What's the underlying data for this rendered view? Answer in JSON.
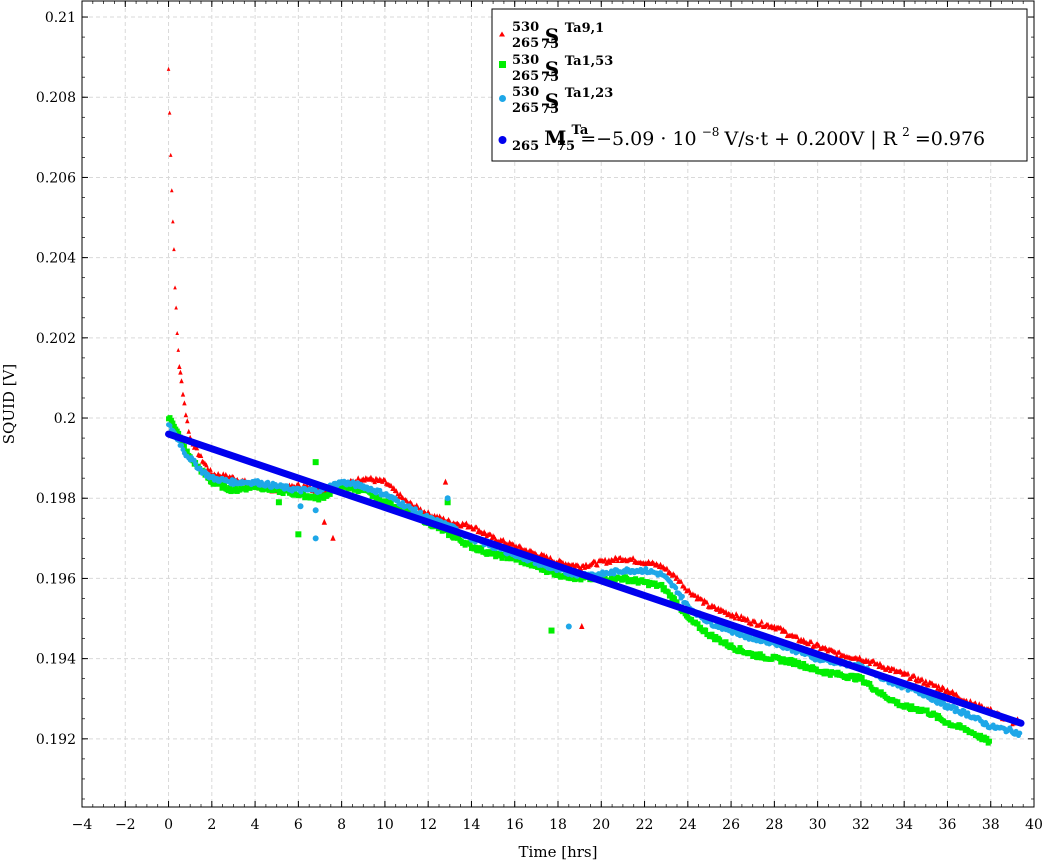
{
  "chart_data": {
    "type": "scatter",
    "xlabel": "Time [hrs]",
    "ylabel": "SQUID [V]",
    "xlim": [
      -4,
      40
    ],
    "ylim": [
      0.1903,
      0.2104
    ],
    "x_ticks": [
      -4,
      -2,
      0,
      2,
      4,
      6,
      8,
      10,
      12,
      14,
      16,
      18,
      20,
      22,
      24,
      26,
      28,
      30,
      32,
      34,
      36,
      38,
      40
    ],
    "x_tick_labels": [
      "−4",
      "−2",
      "0",
      "2",
      "4",
      "6",
      "8",
      "10",
      "12",
      "14",
      "16",
      "18",
      "20",
      "22",
      "24",
      "26",
      "28",
      "30",
      "32",
      "34",
      "36",
      "38",
      "40"
    ],
    "y_ticks": [
      0.192,
      0.194,
      0.196,
      0.198,
      0.2,
      0.202,
      0.204,
      0.206,
      0.208,
      0.21
    ],
    "y_tick_labels": [
      "0.192",
      "0.194",
      "0.196",
      "0.198",
      "0.2",
      "0.202",
      "0.204",
      "0.206",
      "0.208",
      "0.21"
    ],
    "grid": true,
    "legend_position": "top-right",
    "series": [
      {
        "name": "530/265 S 75 Ta9,1",
        "legend": {
          "pre_sup": "530",
          "pre_sub": "265",
          "main": "S",
          "sup": "Ta9,1",
          "sub": "75"
        },
        "marker": "triangle",
        "color": "#ff0000",
        "x": [
          0,
          0.05,
          0.1,
          0.15,
          0.2,
          0.25,
          0.3,
          0.35,
          0.4,
          0.45,
          0.5,
          0.6,
          0.8,
          1,
          1.5,
          2,
          3,
          4,
          5,
          6,
          7,
          8,
          9,
          10,
          11,
          12,
          13,
          14,
          15,
          16,
          17,
          18,
          19,
          20,
          21,
          22,
          22.8,
          23.5,
          24,
          25,
          26,
          27,
          28,
          29,
          30,
          31,
          32,
          33,
          34,
          35,
          36,
          37,
          38,
          39,
          39.3
        ],
        "y": [
          0.2087,
          0.2076,
          0.2066,
          0.2057,
          0.2049,
          0.2042,
          0.2033,
          0.2027,
          0.2021,
          0.2017,
          0.2013,
          0.2009,
          0.2001,
          0.1995,
          0.199,
          0.1986,
          0.1985,
          0.1983,
          0.1982,
          0.1983,
          0.1982,
          0.1983,
          0.1985,
          0.1984,
          0.1979,
          0.1976,
          0.1974,
          0.1973,
          0.197,
          0.1968,
          0.1966,
          0.1964,
          0.1963,
          0.1964,
          0.1965,
          0.1964,
          0.1963,
          0.196,
          0.1957,
          0.1953,
          0.1951,
          0.1949,
          0.1948,
          0.1945,
          0.1943,
          0.1941,
          0.194,
          0.1938,
          0.1936,
          0.1934,
          0.1932,
          0.1929,
          0.1927,
          0.1924,
          0.1925
        ],
        "outliers_x": [
          7.2,
          7.6,
          12.8,
          19.1
        ],
        "outliers_y": [
          0.1974,
          0.197,
          0.1984,
          0.1948
        ]
      },
      {
        "name": "530/265 S 75 Ta1,53",
        "legend": {
          "pre_sup": "530",
          "pre_sub": "265",
          "main": "S",
          "sup": "Ta1,53",
          "sub": "75"
        },
        "marker": "square",
        "color": "#00ee00",
        "x": [
          0,
          0.2,
          0.4,
          0.6,
          0.8,
          1,
          1.5,
          2,
          3,
          4,
          5,
          6,
          7,
          8,
          9,
          10,
          11,
          12,
          13,
          14,
          15,
          16,
          17,
          18,
          19,
          20,
          21,
          22,
          22.8,
          23.5,
          24,
          25,
          26,
          27,
          28,
          29,
          30,
          31,
          32,
          33,
          34,
          35,
          36,
          37,
          38
        ],
        "y": [
          0.2,
          0.1999,
          0.1997,
          0.1994,
          0.1992,
          0.199,
          0.1987,
          0.1984,
          0.1982,
          0.1983,
          0.1982,
          0.1981,
          0.198,
          0.1983,
          0.1982,
          0.1979,
          0.1977,
          0.1974,
          0.1971,
          0.1968,
          0.1966,
          0.1965,
          0.1963,
          0.1961,
          0.196,
          0.196,
          0.196,
          0.1959,
          0.1958,
          0.1954,
          0.195,
          0.1946,
          0.1943,
          0.1941,
          0.194,
          0.1939,
          0.1937,
          0.1936,
          0.1935,
          0.1931,
          0.1928,
          0.1927,
          0.1924,
          0.1922,
          0.1919
        ],
        "outliers_x": [
          5.1,
          6,
          6.8,
          12.9,
          17.7
        ],
        "outliers_y": [
          0.1979,
          0.1971,
          0.1989,
          0.1979,
          0.1947
        ]
      },
      {
        "name": "530/265 S 75 Ta1,23",
        "legend": {
          "pre_sup": "530",
          "pre_sub": "265",
          "main": "S",
          "sup": "Ta1,23",
          "sub": "75"
        },
        "marker": "circle",
        "color": "#1ea7e8",
        "x": [
          0,
          0.2,
          0.4,
          0.6,
          0.8,
          1,
          1.5,
          2,
          3,
          4,
          5,
          6,
          7,
          8,
          9,
          10,
          11,
          12,
          13,
          14,
          15,
          16,
          17,
          18,
          19,
          20,
          21,
          22,
          22.8,
          23.5,
          24,
          25,
          26,
          27,
          28,
          29,
          30,
          31,
          32,
          33,
          34,
          35,
          36,
          37,
          38,
          39,
          39.4
        ],
        "y": [
          0.1998,
          0.1997,
          0.1995,
          0.1993,
          0.1991,
          0.199,
          0.1987,
          0.1985,
          0.1984,
          0.1984,
          0.1983,
          0.1982,
          0.1982,
          0.1984,
          0.1983,
          0.1981,
          0.1978,
          0.1975,
          0.1973,
          0.197,
          0.1968,
          0.1966,
          0.1964,
          0.1962,
          0.1961,
          0.1961,
          0.1962,
          0.1962,
          0.1961,
          0.1957,
          0.1953,
          0.1949,
          0.1947,
          0.1945,
          0.1944,
          0.1942,
          0.194,
          0.1939,
          0.1938,
          0.1935,
          0.1933,
          0.1931,
          0.1928,
          0.1926,
          0.1923,
          0.1922,
          0.1921
        ],
        "outliers_x": [
          6.1,
          6.8,
          6.8,
          12.9,
          18.5
        ],
        "outliers_y": [
          0.1978,
          0.1977,
          0.197,
          0.198,
          0.1948
        ]
      }
    ],
    "fit": {
      "name": "265 M 75 Ta fit",
      "legend": {
        "pre_sub": "265",
        "main": "M",
        "sup": "Ta",
        "sub": "75"
      },
      "equation_prefix": "=−5.09 · 10",
      "equation_exp": "−8",
      "equation_suffix": "V/s·t + 0.200V | R",
      "r2_exp": "2",
      "r2_value": "=0.976",
      "color": "#0000ee",
      "slope_per_hour": -0.000183,
      "intercept": 0.1996,
      "x_range": [
        0,
        39.4
      ]
    }
  }
}
